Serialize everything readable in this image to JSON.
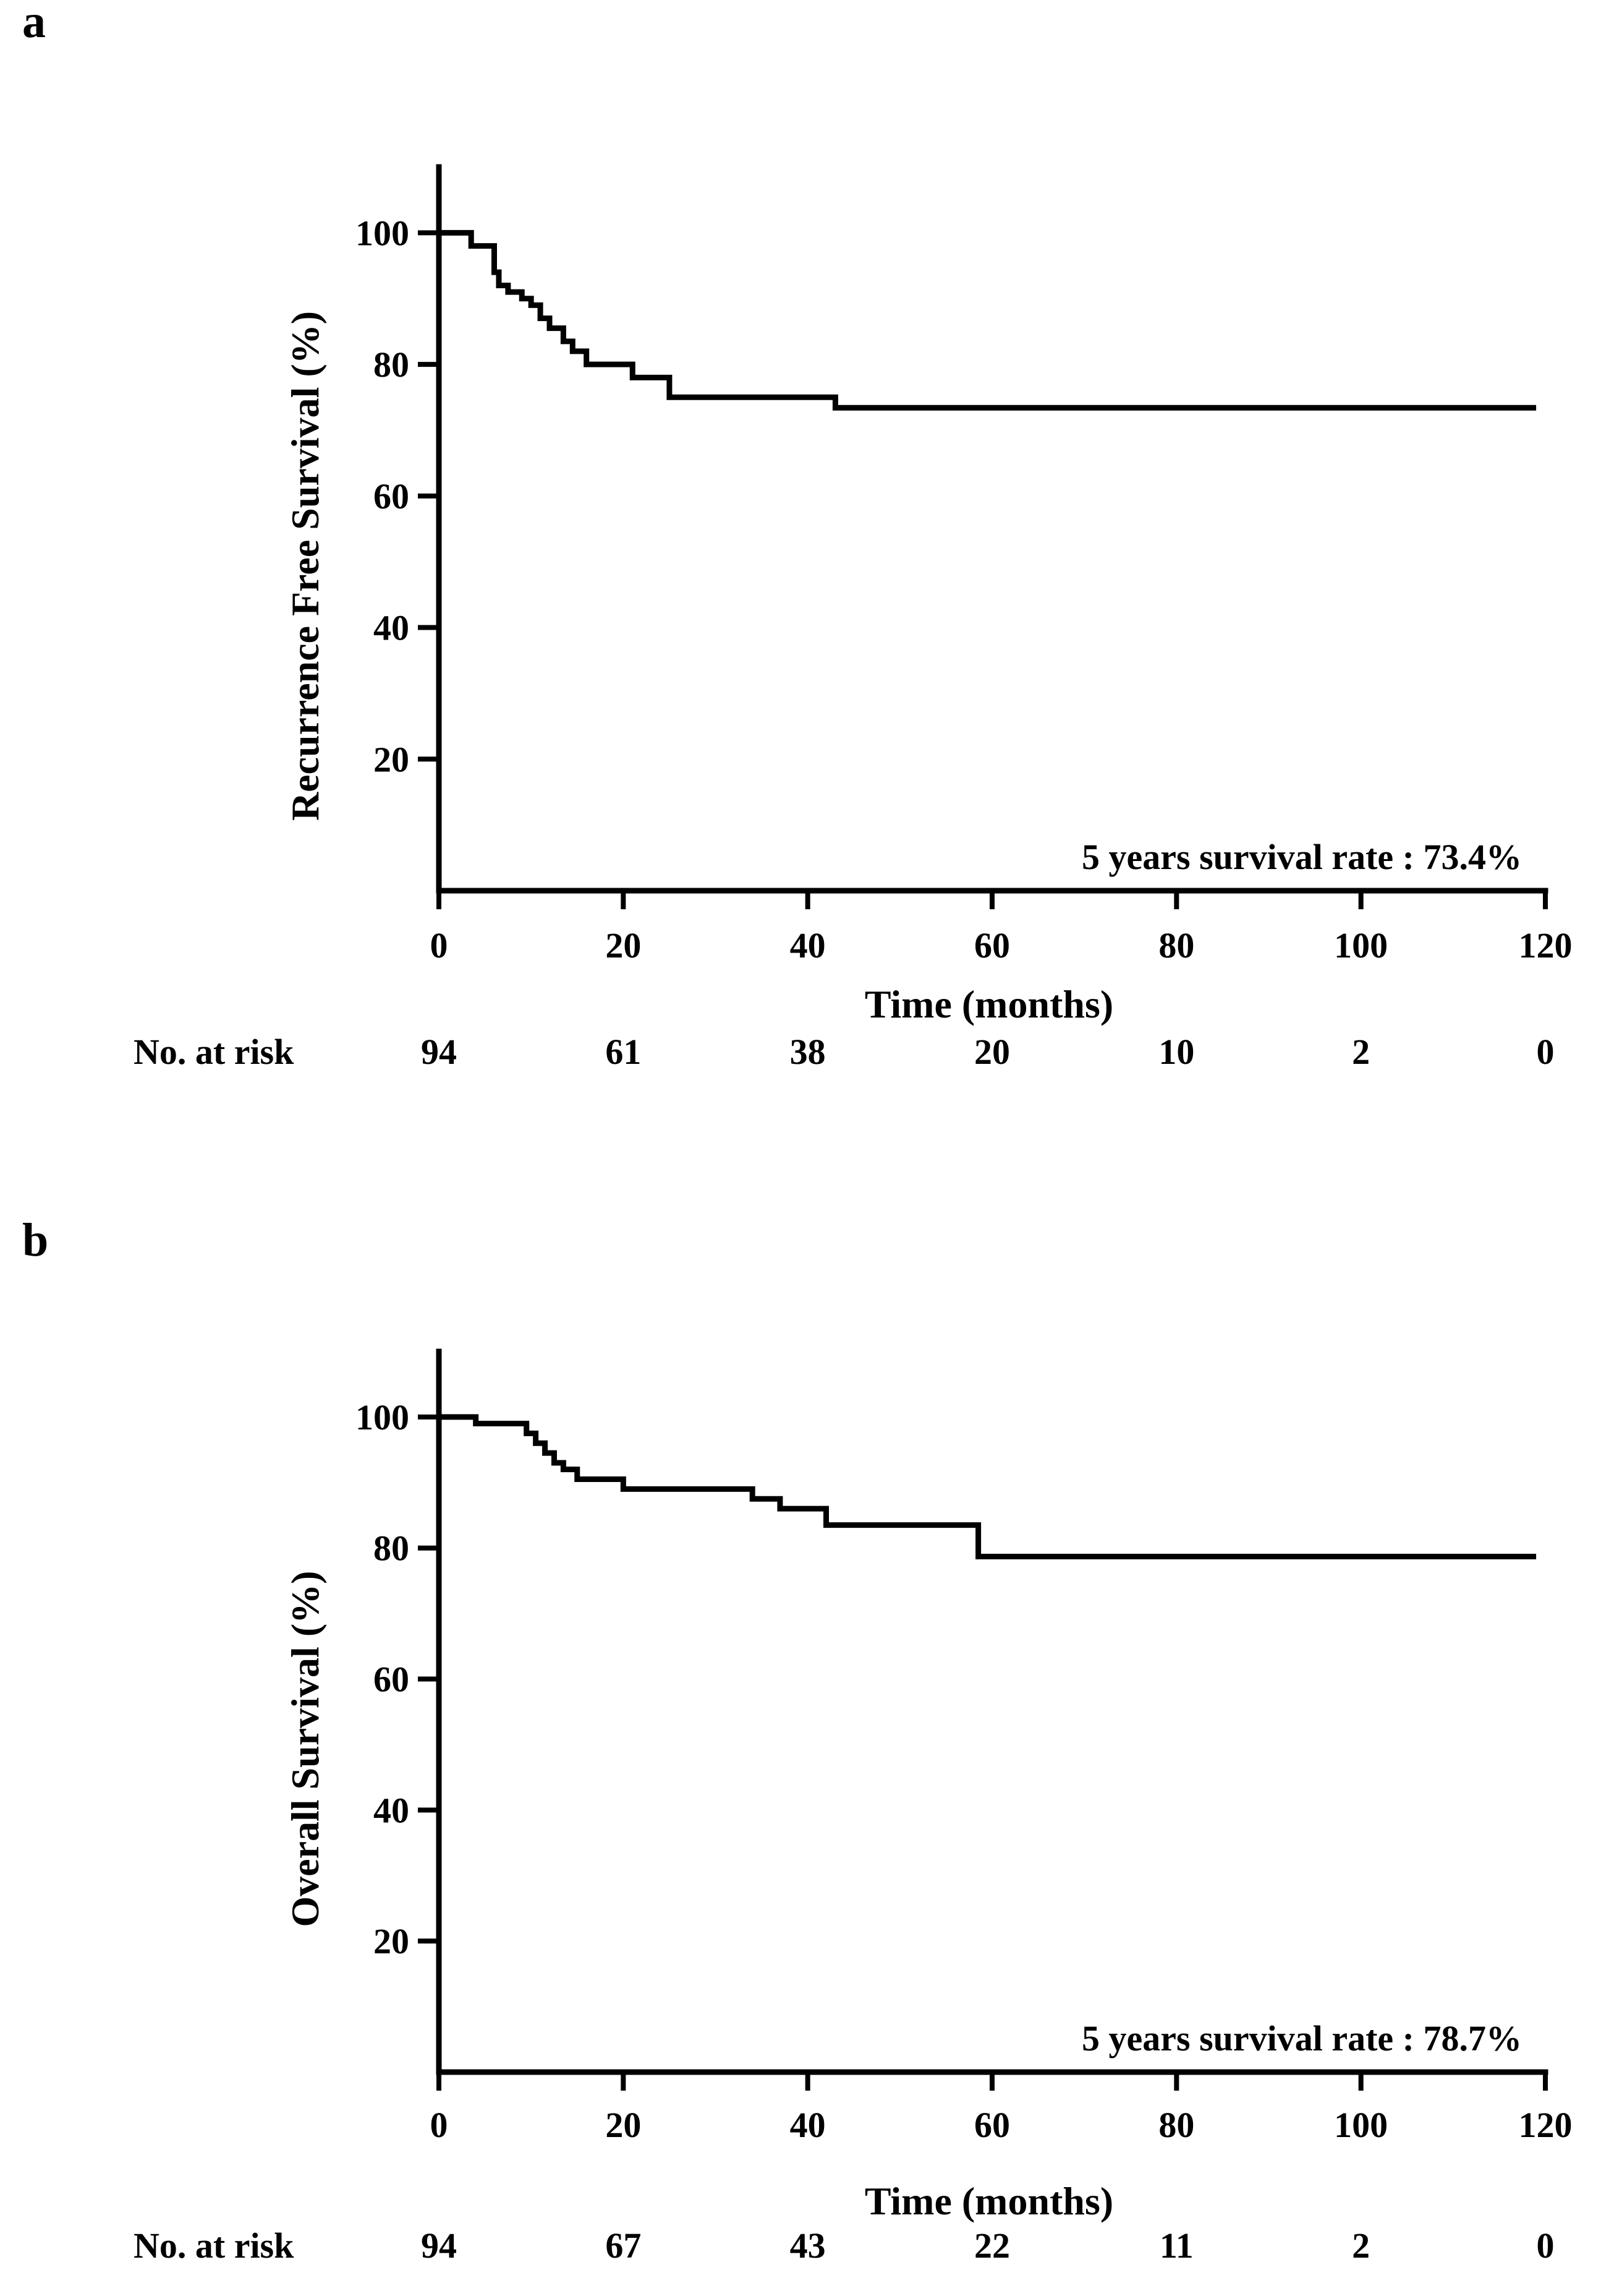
{
  "colors": {
    "background": "#ffffff",
    "ink": "#000000"
  },
  "chart_data": [
    {
      "type": "line",
      "subtype": "kaplan-meier-step",
      "panel_label": "a",
      "xlabel": "Time  (months)",
      "ylabel": "Recurrence  Free  Survival  (%)",
      "xlim": [
        0,
        120
      ],
      "ylim": [
        0,
        110
      ],
      "xticks": [
        0,
        20,
        40,
        60,
        80,
        100,
        120
      ],
      "xtick_labels": [
        "0",
        "20",
        "40",
        "60",
        "80",
        "100",
        "120"
      ],
      "yticks": [
        20,
        40,
        60,
        80,
        100
      ],
      "ytick_labels": [
        "20",
        "40",
        "60",
        "80",
        "100"
      ],
      "annotation": "5 years survival rate : 73.4%",
      "series": [
        {
          "name": "Recurrence Free Survival",
          "x": [
            0,
            3.5,
            6,
            6.5,
            7.5,
            9,
            10,
            11,
            12,
            13.5,
            14.5,
            16,
            21,
            25,
            43,
            119
          ],
          "y": [
            100,
            98,
            94,
            92,
            91,
            90,
            89,
            87,
            85.5,
            83.5,
            82,
            80,
            78,
            75,
            73.4,
            73.4
          ]
        }
      ],
      "risk_table": {
        "label": "No. at risk",
        "times": [
          0,
          20,
          40,
          60,
          80,
          100,
          120
        ],
        "values": [
          "94",
          "61",
          "38",
          "20",
          "10",
          "2",
          "0"
        ]
      }
    },
    {
      "type": "line",
      "subtype": "kaplan-meier-step",
      "panel_label": "b",
      "xlabel": "Time  (months)",
      "ylabel": "Overall Survival  (%)",
      "xlim": [
        0,
        120
      ],
      "ylim": [
        0,
        110
      ],
      "xticks": [
        0,
        20,
        40,
        60,
        80,
        100,
        120
      ],
      "xtick_labels": [
        "0",
        "20",
        "40",
        "60",
        "80",
        "100",
        "120"
      ],
      "yticks": [
        20,
        40,
        60,
        80,
        100
      ],
      "ytick_labels": [
        "20",
        "40",
        "60",
        "80",
        "100"
      ],
      "annotation": "5 years survival rate : 78.7%",
      "series": [
        {
          "name": "Overall Survival",
          "x": [
            0,
            4,
            9.5,
            10.5,
            11.5,
            12.5,
            13.5,
            15,
            20,
            34,
            37,
            42,
            58.5,
            119
          ],
          "y": [
            100,
            99,
            97.5,
            96,
            94.5,
            93,
            92,
            90.5,
            89,
            87.5,
            86,
            83.5,
            78.7,
            78.7
          ]
        }
      ],
      "risk_table": {
        "label": "No. at risk",
        "times": [
          0,
          20,
          40,
          60,
          80,
          100,
          120
        ],
        "values": [
          "94",
          "67",
          "43",
          "22",
          "11",
          "2",
          "0"
        ]
      }
    }
  ]
}
